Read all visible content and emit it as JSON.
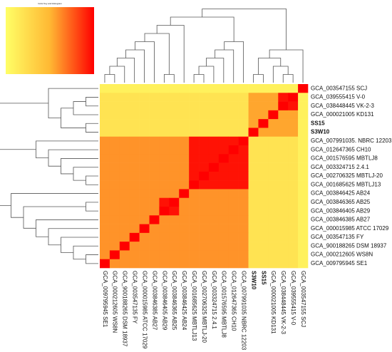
{
  "chart_data": {
    "type": "heatmap",
    "title": "Color Key and Histogram",
    "rows": [
      "GCA_003547155 SCJ",
      "GCA_039555415 V-0",
      "GCA_038448445 VK-2-3",
      "GCA_000021005 KD131",
      "SS15",
      "S3W10",
      "GCA_007991035. NBRC 12203",
      "GCA_012647365 CH10",
      "GCA_001576595 MBTLJ8",
      "GCA_003324715 2.4.1",
      "GCA_002706325 MBTLJ-20",
      "GCA_001685625 MBTLJ13",
      "GCA_003846425 AB24",
      "GCA_003846365 AB25",
      "GCA_003846405 AB29",
      "GCA_003846385 AB27",
      "GCA_000015985 ATCC 17029",
      "GCA_003547135 FY",
      "GCA_900188265 DSM 18937",
      "GCA_000212605 WS8N",
      "GCA_009795945 SE1"
    ],
    "columns": [
      "GCA_009795945 SE1",
      "GCA_000212605 WS8N",
      "GCA_900188265 DSM 18937",
      "GCA_003547135 FY",
      "GCA_000015985 ATCC 17029",
      "GCA_003846385 AB27",
      "GCA_003846405 AB29",
      "GCA_003846365 AB25",
      "GCA_003846425 AB24",
      "GCA_001685625 MBTLJ13",
      "GCA_002706325 MBTLJ-20",
      "GCA_003324715 2.4.1",
      "GCA_001576595 MBTLJ8",
      "GCA_012647365 CH10",
      "GCA_007991035 NBRC 12203",
      "S3W10",
      "SS15",
      "GCA_000021005 KD131",
      "GCA_038448445 VK-2-3",
      "GCA_039555415 V-0",
      "GCA_003547155 SCJ"
    ],
    "values": [
      [
        0.1,
        0.1,
        0.1,
        0.1,
        0.1,
        0.1,
        0.1,
        0.1,
        0.1,
        0.1,
        0.1,
        0.1,
        0.1,
        0.1,
        0.1,
        0.1,
        0.1,
        0.1,
        0.1,
        0.1,
        1
      ],
      [
        0.2,
        0.2,
        0.2,
        0.2,
        0.2,
        0.2,
        0.2,
        0.2,
        0.2,
        0.2,
        0.2,
        0.2,
        0.2,
        0.2,
        0.2,
        0.55,
        0.55,
        0.55,
        0.95,
        1,
        0.1
      ],
      [
        0.2,
        0.2,
        0.2,
        0.2,
        0.2,
        0.2,
        0.2,
        0.2,
        0.2,
        0.2,
        0.2,
        0.2,
        0.2,
        0.2,
        0.2,
        0.55,
        0.55,
        0.55,
        1,
        0.95,
        0.1
      ],
      [
        0.2,
        0.2,
        0.2,
        0.2,
        0.2,
        0.2,
        0.2,
        0.2,
        0.2,
        0.2,
        0.2,
        0.2,
        0.2,
        0.2,
        0.2,
        0.55,
        0.55,
        1,
        0.55,
        0.55,
        0.1
      ],
      [
        0.2,
        0.2,
        0.2,
        0.2,
        0.2,
        0.2,
        0.2,
        0.2,
        0.2,
        0.2,
        0.2,
        0.2,
        0.2,
        0.2,
        0.2,
        0.55,
        1,
        0.55,
        0.55,
        0.55,
        0.1
      ],
      [
        0.2,
        0.2,
        0.2,
        0.2,
        0.2,
        0.2,
        0.2,
        0.2,
        0.2,
        0.2,
        0.2,
        0.2,
        0.2,
        0.2,
        0.2,
        1,
        0.55,
        0.55,
        0.55,
        0.55,
        0.1
      ],
      [
        0.6,
        0.6,
        0.6,
        0.6,
        0.6,
        0.6,
        0.6,
        0.6,
        0.6,
        0.95,
        0.95,
        0.95,
        0.95,
        0.95,
        1,
        0.2,
        0.2,
        0.2,
        0.2,
        0.2,
        0.1
      ],
      [
        0.6,
        0.6,
        0.6,
        0.6,
        0.6,
        0.6,
        0.6,
        0.6,
        0.6,
        0.95,
        0.95,
        0.95,
        0.95,
        1,
        0.95,
        0.2,
        0.2,
        0.2,
        0.2,
        0.2,
        0.1
      ],
      [
        0.6,
        0.6,
        0.6,
        0.6,
        0.6,
        0.6,
        0.6,
        0.6,
        0.6,
        0.95,
        0.95,
        0.95,
        1,
        0.95,
        0.95,
        0.2,
        0.2,
        0.2,
        0.2,
        0.2,
        0.1
      ],
      [
        0.6,
        0.6,
        0.6,
        0.6,
        0.6,
        0.6,
        0.6,
        0.6,
        0.6,
        0.95,
        0.95,
        1,
        0.95,
        0.95,
        0.95,
        0.2,
        0.2,
        0.2,
        0.2,
        0.2,
        0.1
      ],
      [
        0.6,
        0.6,
        0.6,
        0.6,
        0.6,
        0.6,
        0.6,
        0.6,
        0.6,
        0.95,
        1,
        0.95,
        0.95,
        0.95,
        0.95,
        0.2,
        0.2,
        0.2,
        0.2,
        0.2,
        0.1
      ],
      [
        0.6,
        0.6,
        0.6,
        0.6,
        0.6,
        0.6,
        0.6,
        0.6,
        0.6,
        1,
        0.95,
        0.95,
        0.95,
        0.95,
        0.95,
        0.2,
        0.2,
        0.2,
        0.2,
        0.2,
        0.1
      ],
      [
        0.6,
        0.6,
        0.6,
        0.6,
        0.6,
        0.6,
        0.6,
        0.6,
        1,
        0.6,
        0.6,
        0.6,
        0.6,
        0.6,
        0.6,
        0.2,
        0.2,
        0.2,
        0.2,
        0.2,
        0.1
      ],
      [
        0.6,
        0.6,
        0.6,
        0.6,
        0.6,
        0.6,
        0.95,
        1,
        0.6,
        0.6,
        0.6,
        0.6,
        0.6,
        0.6,
        0.6,
        0.2,
        0.2,
        0.2,
        0.2,
        0.2,
        0.1
      ],
      [
        0.6,
        0.6,
        0.6,
        0.6,
        0.6,
        0.6,
        1,
        0.95,
        0.6,
        0.6,
        0.6,
        0.6,
        0.6,
        0.6,
        0.6,
        0.2,
        0.2,
        0.2,
        0.2,
        0.2,
        0.1
      ],
      [
        0.6,
        0.6,
        0.6,
        0.6,
        0.6,
        1,
        0.6,
        0.6,
        0.6,
        0.6,
        0.6,
        0.6,
        0.6,
        0.6,
        0.6,
        0.2,
        0.2,
        0.2,
        0.2,
        0.2,
        0.1
      ],
      [
        0.6,
        0.6,
        0.6,
        0.6,
        1,
        0.6,
        0.6,
        0.6,
        0.6,
        0.6,
        0.6,
        0.6,
        0.6,
        0.6,
        0.6,
        0.2,
        0.2,
        0.2,
        0.2,
        0.2,
        0.1
      ],
      [
        0.6,
        0.6,
        0.6,
        1,
        0.6,
        0.6,
        0.6,
        0.6,
        0.6,
        0.6,
        0.6,
        0.6,
        0.6,
        0.6,
        0.6,
        0.2,
        0.2,
        0.2,
        0.2,
        0.2,
        0.1
      ],
      [
        0.6,
        0.6,
        1,
        0.6,
        0.6,
        0.6,
        0.6,
        0.6,
        0.6,
        0.6,
        0.6,
        0.6,
        0.6,
        0.6,
        0.6,
        0.2,
        0.2,
        0.2,
        0.2,
        0.2,
        0.1
      ],
      [
        0.6,
        1,
        0.6,
        0.6,
        0.6,
        0.6,
        0.6,
        0.6,
        0.6,
        0.6,
        0.6,
        0.6,
        0.6,
        0.6,
        0.6,
        0.2,
        0.2,
        0.2,
        0.2,
        0.2,
        0.1
      ],
      [
        1,
        0.6,
        0.6,
        0.6,
        0.6,
        0.6,
        0.6,
        0.6,
        0.6,
        0.6,
        0.6,
        0.6,
        0.6,
        0.6,
        0.6,
        0.2,
        0.2,
        0.2,
        0.2,
        0.2,
        0.1
      ]
    ],
    "zlim": [
      0,
      1
    ],
    "colorscale": [
      "#ffff66",
      "#ffb833",
      "#ff0000"
    ],
    "highlight_rows": [
      4,
      5
    ],
    "highlight_columns": [
      15,
      16
    ],
    "highlight_color": "#1a8fd1"
  }
}
